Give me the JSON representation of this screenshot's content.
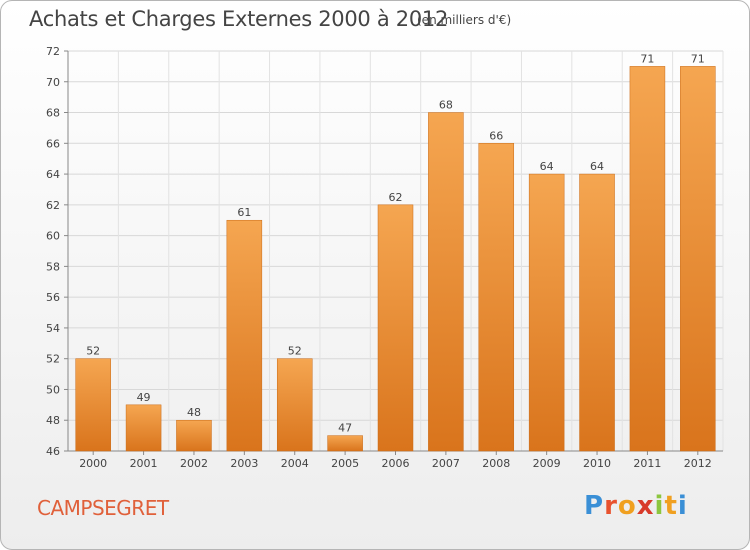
{
  "title": "Achats et Charges Externes 2000 à 2012",
  "subtitle": "(en milliers d'€)",
  "commune": "CAMPSEGRET",
  "logo": {
    "letters": [
      "P",
      "r",
      "o",
      "x",
      "i",
      "t",
      "i"
    ],
    "colors": [
      "#3a8fd6",
      "#e8522e",
      "#f0a020",
      "#d83a2a",
      "#8cc63f",
      "#f0a020",
      "#3a8fd6"
    ]
  },
  "colors": {
    "bar_light": "#f5a651",
    "bar_dark": "#d9741c",
    "title": "#444444",
    "commune": "#e0603a"
  },
  "chart_data": {
    "type": "bar",
    "categories": [
      "2000",
      "2001",
      "2002",
      "2003",
      "2004",
      "2005",
      "2006",
      "2007",
      "2008",
      "2009",
      "2010",
      "2011",
      "2012"
    ],
    "values": [
      52,
      49,
      48,
      61,
      52,
      47,
      62,
      68,
      66,
      64,
      64,
      71,
      71
    ],
    "ylim": [
      46,
      72
    ],
    "yticks": [
      46,
      48,
      50,
      52,
      54,
      56,
      58,
      60,
      62,
      64,
      66,
      68,
      70,
      72
    ],
    "grid": true,
    "xlabel": "",
    "ylabel": ""
  }
}
